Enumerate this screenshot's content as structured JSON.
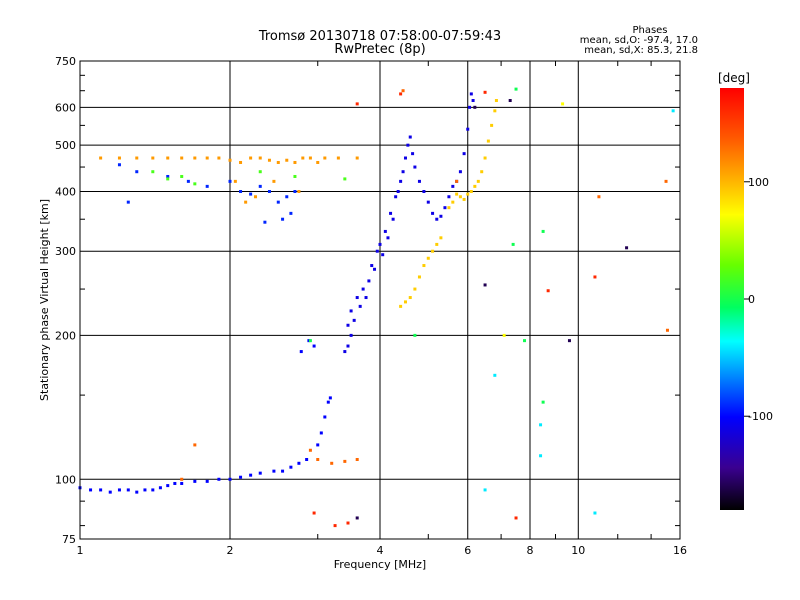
{
  "chart_data": {
    "type": "scatter",
    "title": "Tromsø 20130718 07:58:00-07:59:43",
    "subtitle": "RwPretec (8p)",
    "stats": {
      "heading": "Phases",
      "line1": "mean, sd,O: -97.4, 17.0",
      "line2": "mean, sd,X:  85.3, 21.8"
    },
    "xlabel": "Frequency [MHz]",
    "ylabel": "Stationary phase Virtual Height [km]",
    "x_scale": "log",
    "y_scale": "log",
    "xlim": [
      1,
      16
    ],
    "ylim": [
      75,
      750
    ],
    "x_ticks": [
      1,
      2,
      4,
      6,
      8,
      10,
      16
    ],
    "y_ticks": [
      75,
      100,
      200,
      300,
      400,
      500,
      600,
      750
    ],
    "grid": true,
    "colorbar": {
      "label": "[deg]",
      "range": [
        -180,
        180
      ],
      "ticks": [
        100,
        0,
        -100
      ]
    },
    "series": [
      {
        "phase": -100,
        "points": [
          [
            1.0,
            96
          ],
          [
            1.05,
            95
          ],
          [
            1.1,
            95
          ],
          [
            1.15,
            94
          ],
          [
            1.2,
            95
          ],
          [
            1.25,
            95
          ],
          [
            1.3,
            94
          ],
          [
            1.35,
            95
          ],
          [
            1.4,
            95
          ],
          [
            1.45,
            96
          ],
          [
            1.5,
            97
          ],
          [
            1.55,
            98
          ],
          [
            1.6,
            98
          ],
          [
            1.7,
            99
          ],
          [
            1.8,
            99
          ],
          [
            1.9,
            100
          ],
          [
            2.0,
            100
          ],
          [
            2.1,
            101
          ],
          [
            2.2,
            102
          ],
          [
            2.3,
            103
          ],
          [
            2.45,
            104
          ],
          [
            2.55,
            104
          ],
          [
            2.65,
            106
          ],
          [
            2.75,
            108
          ],
          [
            2.85,
            110
          ],
          [
            2.78,
            185
          ],
          [
            2.88,
            195
          ],
          [
            2.95,
            190
          ],
          [
            3.0,
            118
          ],
          [
            3.05,
            125
          ],
          [
            3.1,
            135
          ],
          [
            3.15,
            145
          ],
          [
            3.18,
            148
          ]
        ]
      },
      {
        "phase": -110,
        "points": [
          [
            3.4,
            185
          ],
          [
            3.45,
            190
          ],
          [
            3.45,
            210
          ],
          [
            3.5,
            200
          ],
          [
            3.5,
            225
          ],
          [
            3.55,
            215
          ],
          [
            3.6,
            240
          ],
          [
            3.65,
            230
          ],
          [
            3.7,
            250
          ],
          [
            3.75,
            240
          ],
          [
            3.8,
            260
          ],
          [
            3.85,
            280
          ],
          [
            3.9,
            275
          ],
          [
            3.95,
            300
          ],
          [
            4.0,
            310
          ],
          [
            4.05,
            295
          ],
          [
            4.1,
            330
          ],
          [
            4.15,
            320
          ],
          [
            4.2,
            360
          ],
          [
            4.25,
            350
          ],
          [
            4.3,
            390
          ],
          [
            4.35,
            400
          ],
          [
            4.4,
            420
          ],
          [
            4.45,
            440
          ],
          [
            4.5,
            470
          ],
          [
            4.55,
            500
          ],
          [
            4.6,
            520
          ],
          [
            4.65,
            480
          ],
          [
            4.7,
            450
          ],
          [
            4.8,
            420
          ],
          [
            4.9,
            400
          ],
          [
            5.0,
            380
          ],
          [
            5.1,
            360
          ],
          [
            5.2,
            350
          ],
          [
            5.3,
            355
          ],
          [
            5.4,
            370
          ],
          [
            5.5,
            390
          ],
          [
            5.6,
            410
          ],
          [
            5.7,
            420
          ],
          [
            5.8,
            440
          ],
          [
            5.9,
            480
          ],
          [
            6.0,
            540
          ],
          [
            6.05,
            600
          ],
          [
            6.1,
            640
          ],
          [
            6.15,
            620
          ]
        ]
      },
      {
        "phase": -90,
        "points": [
          [
            1.2,
            455
          ],
          [
            1.3,
            440
          ],
          [
            1.5,
            430
          ],
          [
            1.65,
            420
          ],
          [
            1.8,
            410
          ],
          [
            2.0,
            420
          ],
          [
            2.1,
            400
          ],
          [
            2.2,
            395
          ],
          [
            2.3,
            410
          ],
          [
            2.4,
            400
          ],
          [
            2.5,
            380
          ],
          [
            2.6,
            390
          ],
          [
            2.7,
            400
          ],
          [
            1.25,
            380
          ],
          [
            2.35,
            345
          ],
          [
            2.55,
            350
          ],
          [
            2.65,
            360
          ]
        ]
      },
      {
        "phase": 90,
        "points": [
          [
            4.4,
            230
          ],
          [
            4.5,
            235
          ],
          [
            4.6,
            240
          ],
          [
            4.7,
            250
          ],
          [
            4.8,
            265
          ],
          [
            4.9,
            280
          ],
          [
            5.0,
            290
          ],
          [
            5.1,
            300
          ],
          [
            5.2,
            310
          ],
          [
            5.3,
            320
          ],
          [
            5.5,
            370
          ],
          [
            5.6,
            380
          ],
          [
            5.7,
            395
          ],
          [
            5.8,
            390
          ],
          [
            5.9,
            385
          ],
          [
            6.0,
            395
          ],
          [
            6.1,
            400
          ],
          [
            6.2,
            410
          ],
          [
            6.3,
            420
          ],
          [
            6.4,
            440
          ],
          [
            6.5,
            470
          ],
          [
            6.6,
            510
          ],
          [
            6.7,
            550
          ],
          [
            6.8,
            590
          ],
          [
            6.85,
            620
          ]
        ]
      },
      {
        "phase": 110,
        "points": [
          [
            1.1,
            470
          ],
          [
            1.2,
            470
          ],
          [
            1.3,
            470
          ],
          [
            1.4,
            470
          ],
          [
            1.5,
            470
          ],
          [
            1.6,
            470
          ],
          [
            1.7,
            470
          ],
          [
            1.8,
            470
          ],
          [
            1.9,
            470
          ],
          [
            2.0,
            465
          ],
          [
            2.1,
            460
          ],
          [
            2.2,
            470
          ],
          [
            2.3,
            470
          ],
          [
            2.4,
            465
          ],
          [
            2.5,
            460
          ],
          [
            2.6,
            465
          ],
          [
            2.7,
            460
          ],
          [
            2.8,
            470
          ],
          [
            2.9,
            470
          ],
          [
            3.0,
            460
          ],
          [
            3.1,
            470
          ],
          [
            3.3,
            470
          ],
          [
            3.6,
            470
          ],
          [
            2.05,
            420
          ],
          [
            2.15,
            380
          ],
          [
            2.25,
            390
          ],
          [
            2.45,
            420
          ],
          [
            2.75,
            400
          ]
        ]
      },
      {
        "phase": 20,
        "points": [
          [
            1.4,
            440
          ],
          [
            1.5,
            425
          ],
          [
            1.6,
            430
          ],
          [
            1.7,
            415
          ],
          [
            2.3,
            440
          ],
          [
            2.7,
            430
          ],
          [
            3.4,
            425
          ]
        ]
      },
      {
        "phase": 130,
        "points": [
          [
            2.9,
            115
          ],
          [
            3.0,
            110
          ],
          [
            3.2,
            108
          ],
          [
            3.4,
            109
          ],
          [
            3.6,
            110
          ],
          [
            1.7,
            118
          ],
          [
            1.6,
            100
          ],
          [
            4.45,
            650
          ],
          [
            5.7,
            420
          ],
          [
            11.0,
            390
          ],
          [
            15.0,
            420
          ],
          [
            15.1,
            205
          ]
        ]
      },
      {
        "phase": 160,
        "points": [
          [
            2.95,
            85
          ],
          [
            3.25,
            80
          ],
          [
            3.45,
            81
          ],
          [
            3.6,
            610
          ],
          [
            4.4,
            640
          ],
          [
            7.5,
            83
          ],
          [
            8.7,
            248
          ],
          [
            10.8,
            265
          ],
          [
            6.5,
            645
          ]
        ]
      },
      {
        "phase": -160,
        "points": [
          [
            3.6,
            83
          ],
          [
            6.5,
            255
          ],
          [
            7.3,
            620
          ],
          [
            9.6,
            195
          ],
          [
            12.5,
            305
          ],
          [
            6.2,
            600
          ]
        ]
      },
      {
        "phase": 0,
        "points": [
          [
            7.5,
            655
          ],
          [
            8.5,
            330
          ],
          [
            8.5,
            145
          ],
          [
            7.8,
            195
          ],
          [
            7.4,
            310
          ],
          [
            4.7,
            200
          ],
          [
            2.9,
            195
          ]
        ]
      },
      {
        "phase": 70,
        "points": [
          [
            7.1,
            200
          ],
          [
            9.3,
            610
          ]
        ]
      },
      {
        "phase": -40,
        "points": [
          [
            6.8,
            165
          ],
          [
            8.4,
            130
          ],
          [
            8.4,
            112
          ],
          [
            10.8,
            85
          ],
          [
            15.5,
            590
          ],
          [
            6.5,
            95
          ]
        ]
      }
    ]
  }
}
